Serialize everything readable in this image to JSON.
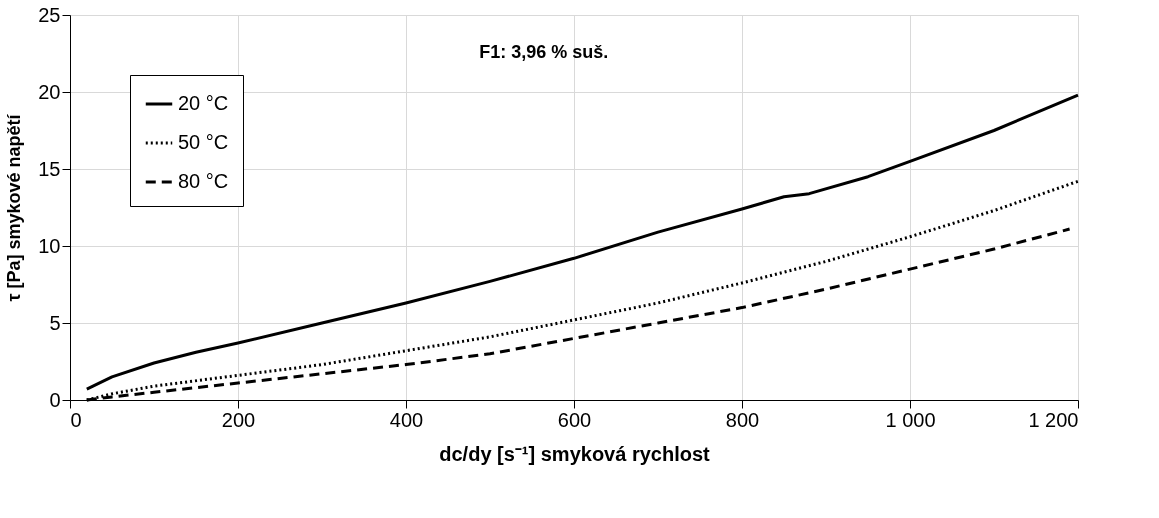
{
  "chart_data": {
    "type": "line",
    "xlabel": "dc/dy [s⁻¹] smyková rychlost",
    "ylabel": "τ [Pa] smykové napětí",
    "annotations": [
      "F1: 3,96 % suš."
    ],
    "xlim": [
      0,
      1200
    ],
    "xticks": [
      0,
      200,
      400,
      600,
      800,
      {
        "value": 1000,
        "label": "1 000"
      },
      {
        "value": 1200,
        "label": "1 200"
      }
    ],
    "ylim": [
      0,
      25
    ],
    "yticks": [
      0,
      5,
      10,
      15,
      20,
      25
    ],
    "grid": true,
    "legend": "top left",
    "marker": "none",
    "series": [
      {
        "name": "20 °C",
        "color": "#000000",
        "line_style": "solid",
        "x": [
          20,
          50,
          100,
          150,
          200,
          300,
          400,
          500,
          600,
          700,
          800,
          850,
          880,
          950,
          1000,
          1100,
          1200
        ],
        "values": [
          0.7,
          1.5,
          2.4,
          3.1,
          3.7,
          5.0,
          6.3,
          7.7,
          9.2,
          10.9,
          12.4,
          13.2,
          13.4,
          14.5,
          15.5,
          17.5,
          19.8
        ]
      },
      {
        "name": "50 °C",
        "color": "#000000",
        "line_style": "dotted",
        "x": [
          20,
          50,
          100,
          200,
          300,
          400,
          500,
          600,
          700,
          800,
          900,
          1000,
          1100,
          1200
        ],
        "values": [
          0.0,
          0.4,
          0.9,
          1.6,
          2.3,
          3.2,
          4.1,
          5.2,
          6.3,
          7.6,
          9.0,
          10.6,
          12.3,
          14.2
        ]
      },
      {
        "name": "80 °C",
        "color": "#000000",
        "line_style": "dashed",
        "x": [
          20,
          50,
          100,
          200,
          300,
          400,
          500,
          600,
          700,
          800,
          900,
          1000,
          1100,
          1190
        ],
        "values": [
          0.0,
          0.2,
          0.5,
          1.1,
          1.7,
          2.3,
          3.0,
          4.0,
          5.0,
          6.0,
          7.2,
          8.5,
          9.8,
          11.1
        ]
      }
    ]
  }
}
